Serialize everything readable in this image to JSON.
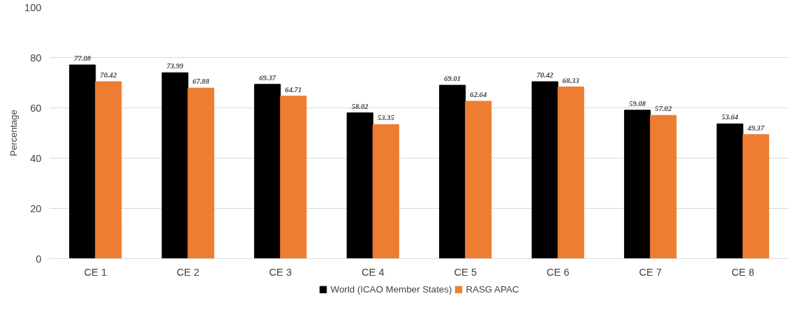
{
  "chart_data": {
    "type": "bar",
    "ylabel": "Percentage",
    "categories": [
      "CE 1",
      "CE 2",
      "CE 3",
      "CE 4",
      "CE 5",
      "CE 6",
      "CE 7",
      "CE 8"
    ],
    "series": [
      {
        "name": "World (ICAO Member States)",
        "color": "#000000",
        "values": [
          77.08,
          73.99,
          69.37,
          58.02,
          69.01,
          70.42,
          59.08,
          53.64
        ]
      },
      {
        "name": "RASG APAC",
        "color": "#ed7d31",
        "values": [
          70.42,
          67.88,
          64.71,
          53.35,
          62.64,
          68.33,
          57.02,
          49.37
        ]
      }
    ],
    "ylim": [
      0,
      100
    ],
    "yticks": [
      0,
      20,
      40,
      60,
      80,
      100
    ],
    "grid": "y",
    "legend": "bottom",
    "data_labels": true
  }
}
